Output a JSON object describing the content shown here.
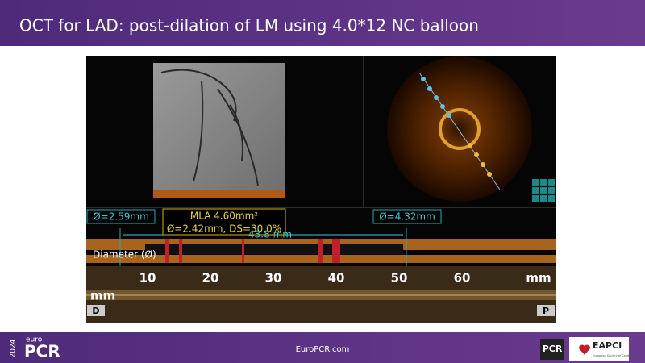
{
  "header": {
    "title": "OCT for LAD: post-dilation of LM using 4.0*12 NC balloon"
  },
  "measurements": {
    "left_diameter": "Ø=2.59mm",
    "mla": "MLA 4.60mm²",
    "mla_detail": "Ø=2.42mm, DS=30.0%",
    "right_diameter": "Ø=4.32mm",
    "length": "43.8 mm",
    "diameter_label": "Diameter (Ø)"
  },
  "scale": {
    "ticks": [
      10,
      20,
      30,
      40,
      50,
      60
    ],
    "unit": "mm",
    "left_unit": "mm",
    "distal": "D",
    "proximal": "P"
  },
  "footer": {
    "year": "2024",
    "brand_small": "euro",
    "brand": "PCR",
    "url": "EuroPCR.com",
    "logo_pcr": "PCR",
    "logo_eapci": "EAPCI",
    "eapci_sub": "European Society of Cardiology"
  }
}
